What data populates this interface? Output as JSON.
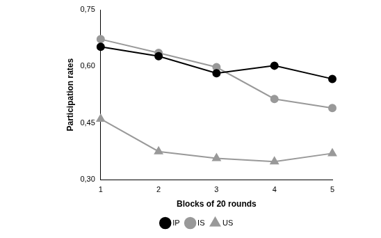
{
  "chart_data": {
    "type": "line",
    "x_label": "Blocks of 20 rounds",
    "y_label": "Participation rates",
    "categories": [
      "1",
      "2",
      "3",
      "4",
      "5"
    ],
    "series": [
      {
        "name": "IP",
        "color": "#000000",
        "marker": "circle",
        "values": [
          0.652,
          0.627,
          0.582,
          0.602,
          0.567
        ]
      },
      {
        "name": "IS",
        "color": "#999999",
        "marker": "circle",
        "values": [
          0.672,
          0.636,
          0.598,
          0.514,
          0.49
        ]
      },
      {
        "name": "US",
        "color": "#999999",
        "marker": "triangle",
        "values": [
          0.461,
          0.375,
          0.357,
          0.348,
          0.37
        ]
      }
    ],
    "ylim": [
      0.3,
      0.75
    ],
    "yticks": [
      {
        "value": 0.3,
        "label": "0,30"
      },
      {
        "value": 0.45,
        "label": "0,45"
      },
      {
        "value": 0.6,
        "label": "0,60"
      },
      {
        "value": 0.75,
        "label": "0,75"
      }
    ],
    "grid": false,
    "legend": "bottom"
  }
}
